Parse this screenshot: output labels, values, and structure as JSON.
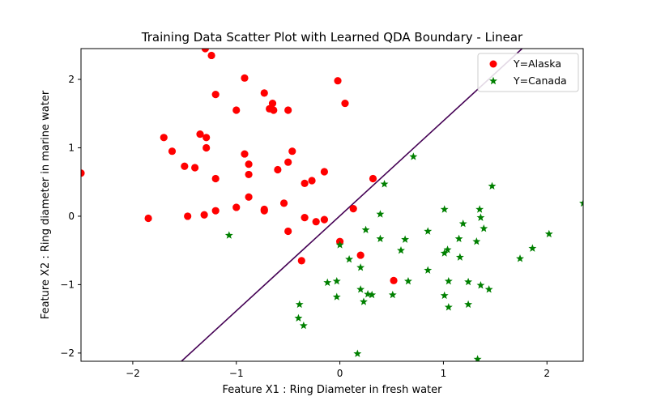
{
  "chart_data": {
    "type": "scatter",
    "title": "Training Data Scatter Plot with Learned QDA Boundary - Linear",
    "xlabel": "Feature X1 : Ring Diameter in fresh water",
    "ylabel": "Feature X2 : Ring diameter in marine water",
    "xlim": [
      -2.5,
      2.35
    ],
    "ylim": [
      -2.12,
      2.45
    ],
    "xticks": [
      -2,
      -1,
      0,
      1,
      2
    ],
    "yticks": [
      -2,
      -1,
      0,
      1,
      2
    ],
    "grid": false,
    "legend_position": "top-right",
    "boundary": {
      "color": "#440154",
      "points": [
        [
          -1.53,
          -2.12
        ],
        [
          1.76,
          2.45
        ]
      ]
    },
    "series": [
      {
        "name": "Y=Alaska",
        "marker": "circle",
        "color": "#ff0000",
        "points": [
          [
            -2.5,
            0.63
          ],
          [
            -1.85,
            -0.03
          ],
          [
            -1.3,
            2.45
          ],
          [
            -1.24,
            2.35
          ],
          [
            -1.2,
            1.78
          ],
          [
            -1.0,
            1.55
          ],
          [
            -0.92,
            2.02
          ],
          [
            -0.73,
            1.8
          ],
          [
            -0.68,
            1.57
          ],
          [
            -0.65,
            1.65
          ],
          [
            -0.64,
            1.55
          ],
          [
            -0.5,
            1.55
          ],
          [
            -0.02,
            1.98
          ],
          [
            0.05,
            1.65
          ],
          [
            -1.7,
            1.15
          ],
          [
            -1.62,
            0.95
          ],
          [
            -1.5,
            0.73
          ],
          [
            -1.4,
            0.71
          ],
          [
            -1.35,
            1.2
          ],
          [
            -1.29,
            1.15
          ],
          [
            -1.29,
            1.0
          ],
          [
            -0.92,
            0.91
          ],
          [
            -0.88,
            0.76
          ],
          [
            -0.88,
            0.61
          ],
          [
            -0.6,
            0.68
          ],
          [
            -0.5,
            0.79
          ],
          [
            -0.46,
            0.95
          ],
          [
            -1.2,
            0.55
          ],
          [
            -0.15,
            0.65
          ],
          [
            -0.27,
            0.52
          ],
          [
            -0.34,
            0.48
          ],
          [
            0.32,
            0.55
          ],
          [
            -0.88,
            0.28
          ],
          [
            -1.0,
            0.13
          ],
          [
            -0.73,
            0.1
          ],
          [
            -0.73,
            0.08
          ],
          [
            -0.54,
            0.19
          ],
          [
            -1.2,
            0.08
          ],
          [
            -1.31,
            0.02
          ],
          [
            -1.47,
            0.0
          ],
          [
            -0.34,
            -0.02
          ],
          [
            -0.23,
            -0.08
          ],
          [
            -0.15,
            -0.05
          ],
          [
            0.13,
            0.11
          ],
          [
            -0.5,
            -0.22
          ],
          [
            0.0,
            -0.37
          ],
          [
            0.2,
            -0.57
          ],
          [
            -0.37,
            -0.65
          ],
          [
            0.52,
            -0.94
          ]
        ]
      },
      {
        "name": "Y=Canada",
        "marker": "star",
        "color": "#008000",
        "points": [
          [
            -1.07,
            -0.28
          ],
          [
            -0.39,
            -1.29
          ],
          [
            -0.4,
            -1.49
          ],
          [
            -0.35,
            -1.6
          ],
          [
            -0.12,
            -0.97
          ],
          [
            -0.03,
            -0.95
          ],
          [
            -0.03,
            -1.18
          ],
          [
            0.0,
            -0.42
          ],
          [
            0.09,
            -0.63
          ],
          [
            0.17,
            -2.01
          ],
          [
            0.2,
            -0.75
          ],
          [
            0.2,
            -1.07
          ],
          [
            0.23,
            -1.25
          ],
          [
            0.25,
            -0.2
          ],
          [
            0.27,
            -1.14
          ],
          [
            0.31,
            -1.15
          ],
          [
            0.39,
            -0.33
          ],
          [
            0.39,
            0.03
          ],
          [
            0.43,
            0.47
          ],
          [
            0.51,
            -1.15
          ],
          [
            0.59,
            -0.5
          ],
          [
            0.63,
            -0.34
          ],
          [
            0.66,
            -0.95
          ],
          [
            0.71,
            0.87
          ],
          [
            0.85,
            -0.22
          ],
          [
            0.85,
            -0.79
          ],
          [
            1.01,
            -1.16
          ],
          [
            1.01,
            0.1
          ],
          [
            1.01,
            -0.54
          ],
          [
            1.04,
            -0.49
          ],
          [
            1.05,
            -0.95
          ],
          [
            1.05,
            -1.33
          ],
          [
            1.15,
            -0.33
          ],
          [
            1.16,
            -0.6
          ],
          [
            1.19,
            -0.11
          ],
          [
            1.24,
            -0.96
          ],
          [
            1.24,
            -1.29
          ],
          [
            1.32,
            -0.37
          ],
          [
            1.33,
            -2.09
          ],
          [
            1.35,
            0.1
          ],
          [
            1.36,
            -0.02
          ],
          [
            1.36,
            -1.01
          ],
          [
            1.39,
            -0.18
          ],
          [
            1.44,
            -1.07
          ],
          [
            1.47,
            0.44
          ],
          [
            1.74,
            -0.62
          ],
          [
            1.86,
            -0.47
          ],
          [
            2.02,
            -0.26
          ],
          [
            2.35,
            0.19
          ]
        ]
      }
    ]
  }
}
